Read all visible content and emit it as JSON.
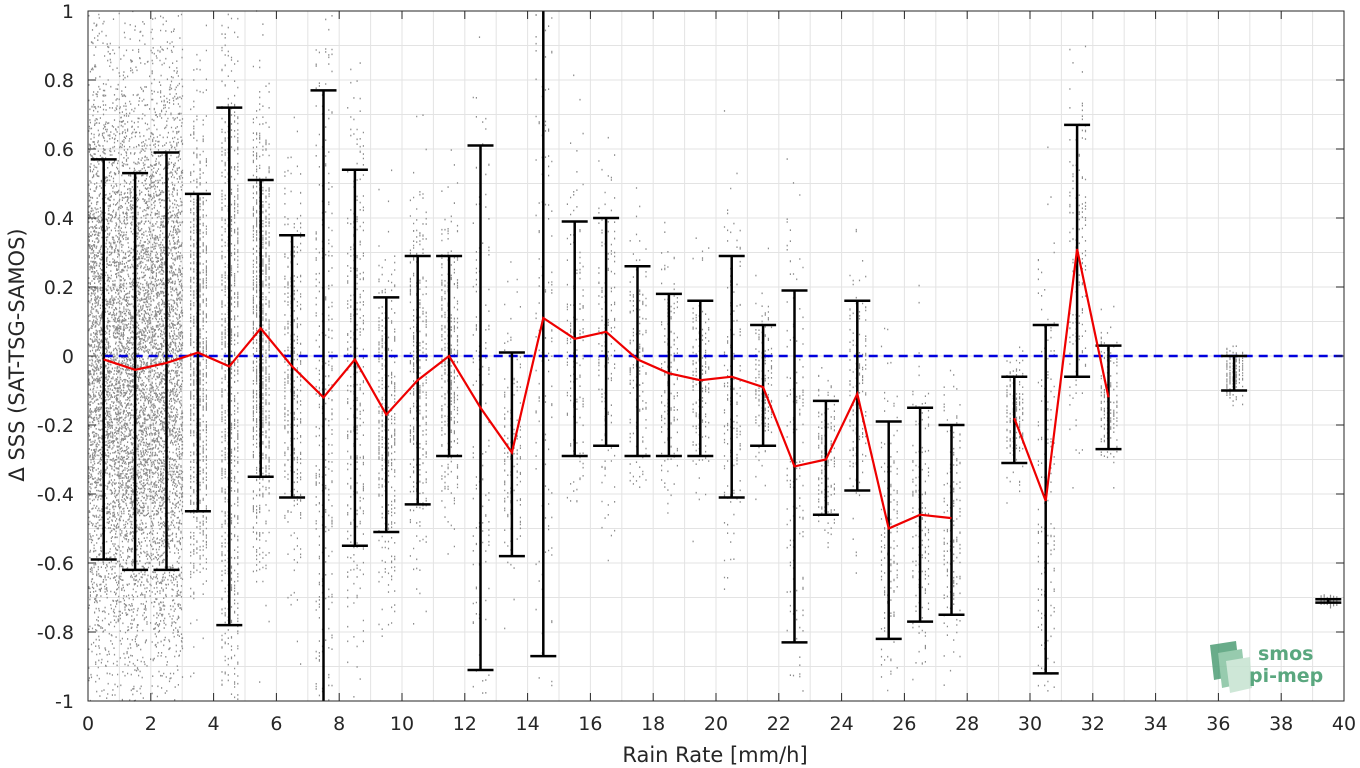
{
  "chart_data": {
    "type": "scatter",
    "xlabel": "Rain Rate [mm/h]",
    "ylabel": "Δ SSS (SAT-TSG-SAMOS)",
    "xlim": [
      0,
      40
    ],
    "ylim": [
      -1,
      1
    ],
    "x_ticks": [
      0,
      2,
      4,
      6,
      8,
      10,
      12,
      14,
      16,
      18,
      20,
      22,
      24,
      26,
      28,
      30,
      32,
      34,
      36,
      38,
      40
    ],
    "y_ticks": [
      -1,
      -0.8,
      -0.6,
      -0.4,
      -0.2,
      0,
      0.2,
      0.4,
      0.6,
      0.8,
      1
    ],
    "y_tick_labels": [
      "-1",
      "-0.8",
      "-0.6",
      "-0.4",
      "-0.2",
      "0",
      "0.2",
      "0.4",
      "0.6",
      "0.8",
      "1"
    ],
    "grid": true,
    "reference_line": {
      "y": 0,
      "color": "#0000dd",
      "style": "dashed"
    },
    "colors": {
      "points": "#8c8c8c",
      "mean_line": "#ee0000",
      "error_bars": "#000000",
      "grid": "#e3e3e3"
    },
    "bins": [
      {
        "x": 0.5,
        "mean": -0.01,
        "low": -0.59,
        "high": 0.57
      },
      {
        "x": 1.5,
        "mean": -0.04,
        "low": -0.62,
        "high": 0.53
      },
      {
        "x": 2.5,
        "mean": -0.02,
        "low": -0.62,
        "high": 0.59
      },
      {
        "x": 3.5,
        "mean": 0.01,
        "low": -0.45,
        "high": 0.47
      },
      {
        "x": 4.5,
        "mean": -0.03,
        "low": -0.78,
        "high": 0.72
      },
      {
        "x": 5.5,
        "mean": 0.08,
        "low": -0.35,
        "high": 0.51
      },
      {
        "x": 6.5,
        "mean": -0.03,
        "low": -0.41,
        "high": 0.35
      },
      {
        "x": 7.5,
        "mean": -0.12,
        "low": -1.0,
        "high": 0.77
      },
      {
        "x": 8.5,
        "mean": -0.01,
        "low": -0.55,
        "high": 0.54
      },
      {
        "x": 9.5,
        "mean": -0.17,
        "low": -0.51,
        "high": 0.17
      },
      {
        "x": 10.5,
        "mean": -0.07,
        "low": -0.43,
        "high": 0.29
      },
      {
        "x": 11.5,
        "mean": 0.0,
        "low": -0.29,
        "high": 0.29
      },
      {
        "x": 12.5,
        "mean": -0.15,
        "low": -0.91,
        "high": 0.61
      },
      {
        "x": 13.5,
        "mean": -0.28,
        "low": -0.58,
        "high": 0.01
      },
      {
        "x": 14.5,
        "mean": 0.11,
        "low": -0.87,
        "high": 1.0
      },
      {
        "x": 15.5,
        "mean": 0.05,
        "low": -0.29,
        "high": 0.39
      },
      {
        "x": 16.5,
        "mean": 0.07,
        "low": -0.26,
        "high": 0.4
      },
      {
        "x": 17.5,
        "mean": -0.01,
        "low": -0.29,
        "high": 0.26
      },
      {
        "x": 18.5,
        "mean": -0.05,
        "low": -0.29,
        "high": 0.18
      },
      {
        "x": 19.5,
        "mean": -0.07,
        "low": -0.29,
        "high": 0.16
      },
      {
        "x": 20.5,
        "mean": -0.06,
        "low": -0.41,
        "high": 0.29
      },
      {
        "x": 21.5,
        "mean": -0.09,
        "low": -0.26,
        "high": 0.09
      },
      {
        "x": 22.5,
        "mean": -0.32,
        "low": -0.83,
        "high": 0.19
      },
      {
        "x": 23.5,
        "mean": -0.3,
        "low": -0.46,
        "high": -0.13
      },
      {
        "x": 24.5,
        "mean": -0.11,
        "low": -0.39,
        "high": 0.16
      },
      {
        "x": 25.5,
        "mean": -0.5,
        "low": -0.82,
        "high": -0.19
      },
      {
        "x": 26.5,
        "mean": -0.46,
        "low": -0.77,
        "high": -0.15
      },
      {
        "x": 27.5,
        "mean": -0.47,
        "low": -0.75,
        "high": -0.2
      },
      {
        "x": 29.5,
        "mean": -0.18,
        "low": -0.31,
        "high": -0.06
      },
      {
        "x": 30.5,
        "mean": -0.42,
        "low": -0.92,
        "high": 0.09
      },
      {
        "x": 31.5,
        "mean": 0.31,
        "low": -0.06,
        "high": 0.67
      },
      {
        "x": 32.5,
        "mean": -0.12,
        "low": -0.27,
        "high": 0.03
      },
      {
        "x": 36.5,
        "mean": -0.05,
        "low": -0.1,
        "high": 0.0
      },
      {
        "x": 39.5,
        "mean": -0.71,
        "low": -0.715,
        "high": -0.705
      }
    ],
    "mean_line_breaks_after_x": [
      27.5,
      32.5
    ]
  },
  "logo": {
    "line1": "smos",
    "line2": "pi-mep",
    "icon": "smos-logo-icon"
  }
}
